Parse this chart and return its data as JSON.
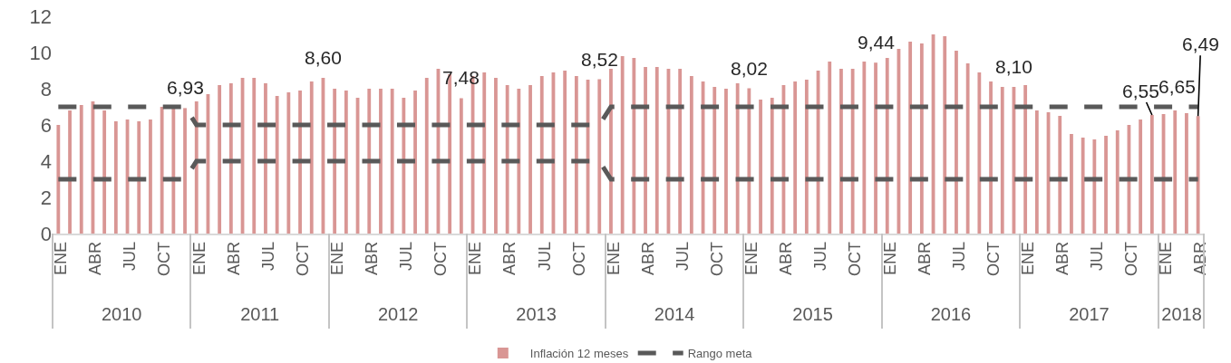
{
  "chart_data": {
    "type": "bar",
    "categories": [
      "ENE",
      null,
      null,
      "ABR",
      null,
      null,
      "JUL",
      null,
      null,
      "OCT",
      null,
      null,
      "ENE",
      null,
      null,
      "ABR",
      null,
      null,
      "JUL",
      null,
      null,
      "OCT",
      null,
      null,
      "ENE",
      null,
      null,
      "ABR",
      null,
      null,
      "JUL",
      null,
      null,
      "OCT",
      null,
      null,
      "ENE",
      null,
      null,
      "ABR",
      null,
      null,
      "JUL",
      null,
      null,
      "OCT",
      null,
      null,
      "ENE",
      null,
      null,
      "ABR",
      null,
      null,
      "JUL",
      null,
      null,
      "OCT",
      null,
      null,
      "ENE",
      null,
      null,
      "ABR",
      null,
      null,
      "JUL",
      null,
      null,
      "OCT",
      null,
      null,
      "ENE",
      null,
      null,
      "ABR",
      null,
      null,
      "JUL",
      null,
      null,
      "OCT",
      null,
      null,
      "ENE",
      null,
      null,
      "ABR",
      null,
      null,
      "JUL",
      null,
      null,
      "OCT",
      null,
      null,
      "ENE",
      null,
      null,
      "ABR"
    ],
    "series": [
      {
        "name": "Inflación 12 meses",
        "color": "#d99694",
        "values": [
          6.0,
          6.8,
          7.1,
          7.3,
          6.8,
          6.2,
          6.3,
          6.2,
          6.3,
          7.0,
          6.9,
          6.93,
          7.3,
          7.7,
          8.2,
          8.3,
          8.6,
          8.6,
          8.3,
          7.6,
          7.8,
          7.9,
          8.4,
          8.6,
          8.0,
          7.9,
          7.5,
          8.0,
          8.0,
          8.0,
          7.5,
          7.9,
          8.6,
          9.1,
          8.8,
          7.48,
          8.7,
          8.9,
          8.6,
          8.2,
          8.0,
          8.2,
          8.7,
          8.9,
          9.0,
          8.7,
          8.5,
          8.52,
          9.1,
          9.8,
          9.7,
          9.2,
          9.2,
          9.1,
          9.1,
          8.7,
          8.4,
          8.1,
          8.0,
          8.3,
          8.02,
          7.4,
          7.5,
          8.2,
          8.4,
          8.5,
          9.0,
          9.5,
          9.1,
          9.1,
          9.5,
          9.44,
          9.7,
          10.2,
          10.6,
          10.5,
          11.0,
          10.9,
          10.1,
          9.4,
          8.9,
          8.4,
          8.1,
          8.1,
          8.2,
          6.8,
          6.7,
          6.5,
          5.5,
          5.3,
          5.2,
          5.4,
          5.7,
          6.0,
          6.3,
          6.55,
          6.6,
          6.8,
          6.65,
          6.49
        ],
        "value_labels": [
          null,
          null,
          null,
          null,
          null,
          null,
          null,
          null,
          null,
          null,
          null,
          "6,93",
          null,
          null,
          null,
          null,
          null,
          null,
          null,
          null,
          null,
          null,
          null,
          "8,60",
          null,
          null,
          null,
          null,
          null,
          null,
          null,
          null,
          null,
          null,
          null,
          "7,48",
          null,
          null,
          null,
          null,
          null,
          null,
          null,
          null,
          null,
          null,
          null,
          "8,52",
          null,
          null,
          null,
          null,
          null,
          null,
          null,
          null,
          null,
          null,
          null,
          null,
          "8,02",
          null,
          null,
          null,
          null,
          null,
          null,
          null,
          null,
          null,
          null,
          "9,44",
          null,
          null,
          null,
          null,
          null,
          null,
          null,
          null,
          null,
          null,
          null,
          "8,10",
          null,
          null,
          null,
          null,
          null,
          null,
          null,
          null,
          null,
          null,
          null,
          "6,55",
          null,
          null,
          "6,65",
          "6,49"
        ]
      },
      {
        "name": "Rango meta",
        "type": "line",
        "color": "#595959",
        "values": [
          7,
          7,
          7,
          7,
          7,
          7,
          7,
          7,
          7,
          7,
          7,
          7,
          6,
          6,
          6,
          6,
          6,
          6,
          6,
          6,
          6,
          6,
          6,
          6,
          6,
          6,
          6,
          6,
          6,
          6,
          6,
          6,
          6,
          6,
          6,
          6,
          6,
          6,
          6,
          6,
          6,
          6,
          6,
          6,
          6,
          6,
          6,
          6,
          7,
          7,
          7,
          7,
          7,
          7,
          7,
          7,
          7,
          7,
          7,
          7,
          7,
          7,
          7,
          7,
          7,
          7,
          7,
          7,
          7,
          7,
          7,
          7,
          7,
          7,
          7,
          7,
          7,
          7,
          7,
          7,
          7,
          7,
          7,
          7,
          7,
          7,
          7,
          7,
          7,
          7,
          7,
          7,
          7,
          7,
          7,
          7,
          7,
          7,
          7,
          7
        ]
      },
      {
        "type": "line",
        "color": "#595959",
        "values": [
          3,
          3,
          3,
          3,
          3,
          3,
          3,
          3,
          3,
          3,
          3,
          3,
          4,
          4,
          4,
          4,
          4,
          4,
          4,
          4,
          4,
          4,
          4,
          4,
          4,
          4,
          4,
          4,
          4,
          4,
          4,
          4,
          4,
          4,
          4,
          4,
          4,
          4,
          4,
          4,
          4,
          4,
          4,
          4,
          4,
          4,
          4,
          4,
          3,
          3,
          3,
          3,
          3,
          3,
          3,
          3,
          3,
          3,
          3,
          3,
          3,
          3,
          3,
          3,
          3,
          3,
          3,
          3,
          3,
          3,
          3,
          3,
          3,
          3,
          3,
          3,
          3,
          3,
          3,
          3,
          3,
          3,
          3,
          3,
          3,
          3,
          3,
          3,
          3,
          3,
          3,
          3,
          3,
          3,
          3,
          3,
          3,
          3,
          3,
          3
        ]
      }
    ],
    "ylim": [
      0,
      12
    ],
    "yticks": [
      0,
      2,
      4,
      6,
      8,
      10,
      12
    ],
    "x2lim": [
      2010,
      2018.33
    ],
    "x2ticks": [
      {
        "value": 2010.5,
        "label": "2010"
      },
      {
        "value": 2011.5,
        "label": "2011"
      },
      {
        "value": 2012.5,
        "label": "2012"
      },
      {
        "value": 2013.5,
        "label": "2013"
      },
      {
        "value": 2014.5,
        "label": "2014"
      },
      {
        "value": 2015.5,
        "label": "2015"
      },
      {
        "value": 2016.5,
        "label": "2016"
      },
      {
        "value": 2017.5,
        "label": "2017"
      },
      {
        "value": 2018.17,
        "label": "2018"
      }
    ],
    "line_style": "dashed",
    "legend": "bottom"
  }
}
